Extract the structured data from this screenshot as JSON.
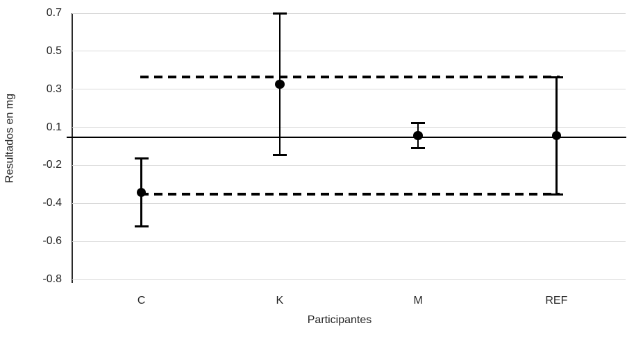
{
  "chart_data": {
    "type": "scatter",
    "title": "",
    "xlabel": "Participantes",
    "ylabel": "Resultados en mg",
    "categories": [
      "C",
      "K",
      "M",
      "REF"
    ],
    "series": [
      {
        "name": "Resultados en mg",
        "marker": "filled-circle",
        "color": "#000000",
        "values": [
          -0.31,
          0.3,
          0.01,
          0.01
        ],
        "error_plus": [
          0.19,
          0.4,
          0.07,
          0.33
        ],
        "error_minus": [
          0.19,
          0.4,
          0.07,
          0.33
        ]
      }
    ],
    "reference_lines": [
      {
        "name": "center-line",
        "value": 0.0,
        "style": "solid",
        "span": "full-width",
        "color": "#000000"
      },
      {
        "name": "upper-limit-line",
        "value": 0.34,
        "style": "dashed",
        "span": "C-to-REF",
        "color": "#000000"
      },
      {
        "name": "lower-limit-line",
        "value": -0.32,
        "style": "dashed",
        "span": "C-to-REF",
        "color": "#000000"
      }
    ],
    "ylim": [
      -0.8,
      0.7
    ],
    "ytick_labels": [
      "0.7",
      "0.5",
      "0.3",
      "0.1",
      "-0.2",
      "-0.4",
      "-0.6",
      "-0.8"
    ],
    "grid": "horizontal",
    "legend_position": "none"
  },
  "style": {
    "background": "#ffffff",
    "gridline_color": "#d9d9d9",
    "axis_color": "#2b2b2b",
    "text_color": "#262626",
    "data_color": "#000000"
  }
}
